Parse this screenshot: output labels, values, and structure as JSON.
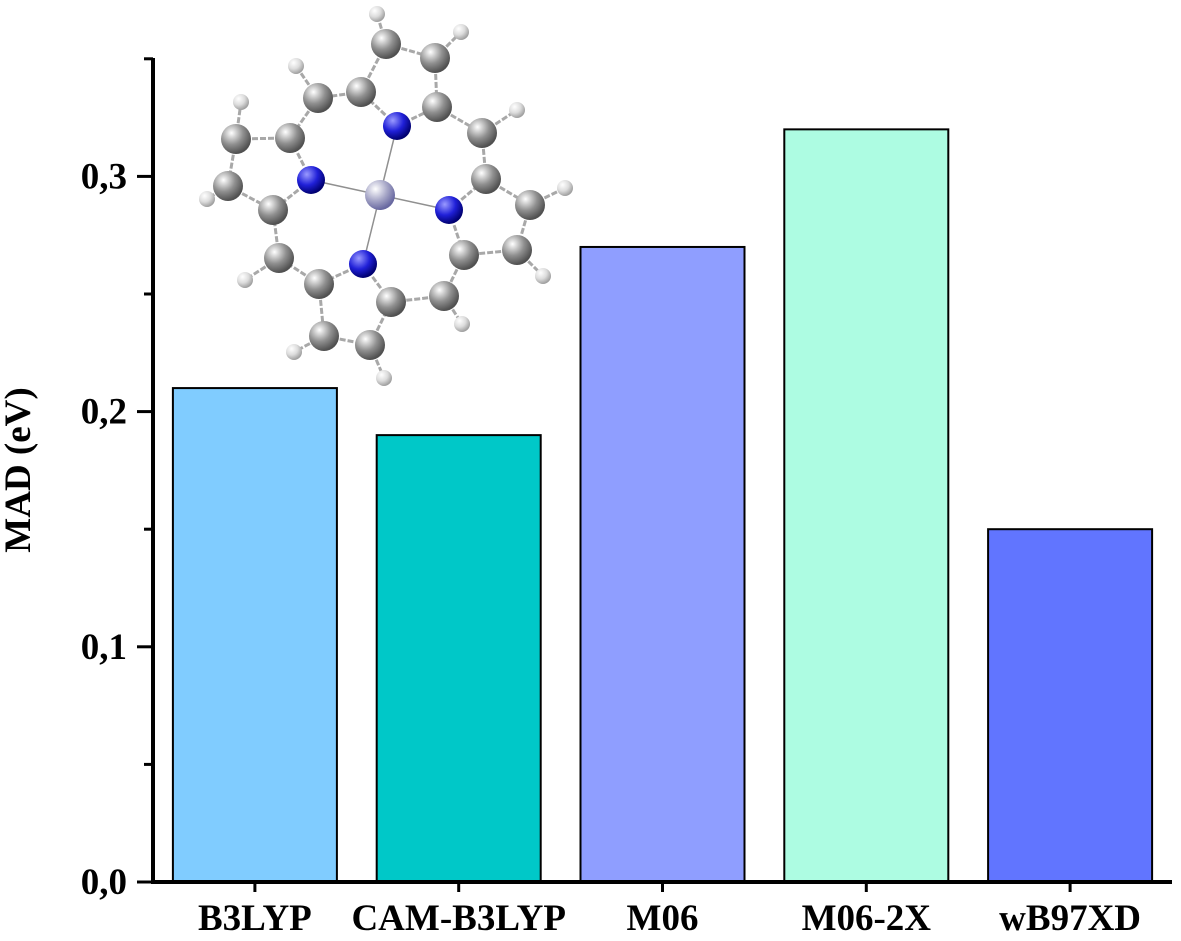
{
  "chart_data": {
    "type": "bar",
    "title": "",
    "xlabel": "",
    "ylabel": "MAD (eV)",
    "categories": [
      "B3LYP",
      "CAM-B3LYP",
      "M06",
      "M06-2X",
      "wB97XD"
    ],
    "values": [
      0.21,
      0.19,
      0.27,
      0.32,
      0.15
    ],
    "colors": [
      "#80ccff",
      "#00c8c8",
      "#8f9eff",
      "#adfce2",
      "#6175ff"
    ],
    "ylim": [
      0,
      0.35
    ],
    "yticks": [
      {
        "value": 0.0,
        "label": "0,0"
      },
      {
        "value": 0.1,
        "label": "0,1"
      },
      {
        "value": 0.2,
        "label": "0,2"
      },
      {
        "value": 0.3,
        "label": "0,3"
      }
    ],
    "grid": false,
    "inset_image": "porphyrin-molecule-ball-and-stick-model"
  }
}
